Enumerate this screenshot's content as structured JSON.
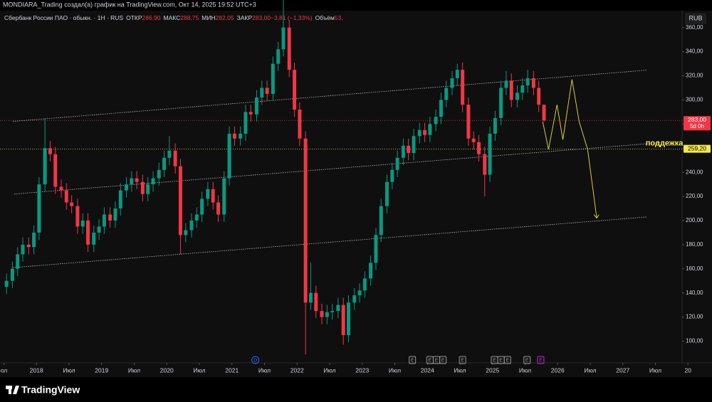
{
  "header": {
    "text": "MONDIARA_Trading создал(а) график на TradingView.com, Окт 14, 2025 19:52 UTC+3"
  },
  "legend": {
    "symbol": "Сбербанк России ПАО · обыкн. · 1Н · RUS",
    "items": [
      {
        "label": "ОТКР",
        "text": "286,90"
      },
      {
        "label": "МАКС",
        "text": "288,75"
      },
      {
        "label": "МИН",
        "text": "282,05"
      },
      {
        "label": "ЗАКР",
        "text": "283,00"
      },
      {
        "label": "",
        "text": "−3,81 (−1,33%)"
      },
      {
        "label": "Объём",
        "text": "53,"
      }
    ]
  },
  "currency": "RUB",
  "footer": {
    "brand": "TradingView"
  },
  "chart_data": {
    "type": "candlestick",
    "up_color": "#089981",
    "down_color": "#f23645",
    "xlim": [
      2017.44,
      2027.91
    ],
    "ylim": [
      82,
      374
    ],
    "xticks": [
      {
        "value": 2017.5,
        "label": "ол"
      },
      2018,
      {
        "value": 2018.5,
        "label": "Июл"
      },
      2019,
      {
        "value": 2019.5,
        "label": "Июл"
      },
      2020,
      {
        "value": 2020.5,
        "label": "Июл"
      },
      2021,
      {
        "value": 2021.5,
        "label": "Июл"
      },
      2022,
      {
        "value": 2022.5,
        "label": "Июл"
      },
      2023,
      {
        "value": 2023.5,
        "label": "Июл"
      },
      2024,
      {
        "value": 2024.5,
        "label": "Июл"
      },
      2025,
      {
        "value": 2025.5,
        "label": "Июл"
      },
      2026,
      {
        "value": 2026.5,
        "label": "Июл"
      },
      2027,
      {
        "value": 2027.5,
        "label": "Июл"
      },
      {
        "value": 2028,
        "label": "20"
      }
    ],
    "yticks": [
      {
        "value": 100,
        "label": "100,00"
      },
      {
        "value": 120,
        "label": "120,00"
      },
      {
        "value": 140,
        "label": "140,00"
      },
      {
        "value": 160,
        "label": "160,00"
      },
      {
        "value": 180,
        "label": "180,00"
      },
      {
        "value": 200,
        "label": "200,00"
      },
      {
        "value": 220,
        "label": "220,00"
      },
      {
        "value": 240,
        "label": "240,00"
      },
      {
        "value": 260,
        "label": "260,00"
      },
      {
        "value": 280,
        "label": "280,00"
      },
      {
        "value": 300,
        "label": "300,00"
      },
      {
        "value": 320,
        "label": "320,00"
      },
      {
        "value": 340,
        "label": "340,00"
      },
      {
        "value": 360,
        "label": "360,00"
      }
    ],
    "candles": {
      "x": [
        2017.54,
        2017.63,
        2017.71,
        2017.79,
        2017.88,
        2017.96,
        2018.04,
        2018.13,
        2018.21,
        2018.29,
        2018.38,
        2018.46,
        2018.54,
        2018.63,
        2018.71,
        2018.79,
        2018.88,
        2018.96,
        2019.04,
        2019.13,
        2019.21,
        2019.29,
        2019.38,
        2019.46,
        2019.54,
        2019.63,
        2019.71,
        2019.79,
        2019.88,
        2019.96,
        2020.04,
        2020.13,
        2020.21,
        2020.29,
        2020.38,
        2020.46,
        2020.54,
        2020.63,
        2020.71,
        2020.79,
        2020.88,
        2020.96,
        2021.04,
        2021.13,
        2021.21,
        2021.29,
        2021.38,
        2021.46,
        2021.54,
        2021.63,
        2021.71,
        2021.79,
        2021.88,
        2021.96,
        2022.04,
        2022.13,
        2022.21,
        2022.29,
        2022.38,
        2022.46,
        2022.54,
        2022.63,
        2022.71,
        2022.79,
        2022.88,
        2022.96,
        2023.04,
        2023.13,
        2023.21,
        2023.29,
        2023.38,
        2023.46,
        2023.54,
        2023.63,
        2023.71,
        2023.79,
        2023.88,
        2023.96,
        2024.04,
        2024.13,
        2024.21,
        2024.29,
        2024.38,
        2024.46,
        2024.54,
        2024.63,
        2024.71,
        2024.79,
        2024.88,
        2024.96,
        2025.04,
        2025.13,
        2025.21,
        2025.29,
        2025.38,
        2025.46,
        2025.54,
        2025.63,
        2025.71,
        2025.79
      ],
      "open": [
        145,
        150,
        160,
        172,
        180,
        178,
        190,
        230,
        260,
        255,
        228,
        225,
        215,
        212,
        195,
        200,
        180,
        190,
        195,
        205,
        200,
        210,
        225,
        230,
        235,
        232,
        222,
        230,
        235,
        242,
        252,
        258,
        245,
        188,
        192,
        200,
        205,
        218,
        226,
        215,
        205,
        235,
        272,
        268,
        272,
        290,
        288,
        302,
        310,
        305,
        330,
        342,
        360,
        325,
        292,
        268,
        132,
        140,
        125,
        120,
        124,
        125,
        130,
        105,
        132,
        138,
        142,
        152,
        165,
        188,
        212,
        232,
        242,
        252,
        262,
        256,
        270,
        275,
        271,
        280,
        286,
        300,
        310,
        318,
        325,
        296,
        268,
        265,
        255,
        238,
        272,
        285,
        310,
        316,
        300,
        306,
        312,
        318,
        310,
        296
      ],
      "high": [
        156,
        166,
        178,
        186,
        186,
        196,
        236,
        285,
        266,
        261,
        234,
        231,
        221,
        218,
        206,
        206,
        196,
        201,
        211,
        211,
        216,
        231,
        236,
        241,
        241,
        238,
        236,
        241,
        248,
        258,
        270,
        264,
        251,
        198,
        206,
        211,
        224,
        232,
        232,
        221,
        241,
        278,
        278,
        278,
        296,
        296,
        308,
        316,
        316,
        336,
        348,
        388,
        366,
        331,
        298,
        274,
        165,
        146,
        131,
        130,
        131,
        136,
        136,
        138,
        144,
        148,
        158,
        171,
        194,
        218,
        238,
        248,
        258,
        268,
        268,
        276,
        281,
        281,
        286,
        292,
        306,
        316,
        324,
        330,
        331,
        302,
        274,
        271,
        261,
        278,
        291,
        316,
        324,
        322,
        312,
        318,
        325,
        324,
        316,
        290
      ],
      "low": [
        139,
        144,
        154,
        166,
        172,
        172,
        184,
        224,
        249,
        222,
        219,
        209,
        206,
        189,
        189,
        174,
        174,
        184,
        189,
        194,
        194,
        204,
        219,
        224,
        226,
        216,
        216,
        224,
        229,
        236,
        246,
        239,
        172,
        182,
        186,
        194,
        199,
        212,
        209,
        199,
        199,
        229,
        262,
        262,
        266,
        282,
        282,
        296,
        299,
        299,
        324,
        336,
        319,
        286,
        262,
        89,
        126,
        119,
        114,
        114,
        118,
        119,
        97,
        99,
        126,
        132,
        136,
        146,
        159,
        182,
        206,
        226,
        236,
        246,
        250,
        250,
        264,
        265,
        265,
        274,
        280,
        294,
        304,
        312,
        290,
        262,
        259,
        249,
        220,
        232,
        266,
        279,
        304,
        294,
        294,
        300,
        306,
        304,
        290,
        282
      ],
      "close": [
        150,
        160,
        172,
        180,
        178,
        190,
        230,
        260,
        255,
        228,
        225,
        215,
        212,
        195,
        200,
        180,
        190,
        195,
        205,
        200,
        210,
        225,
        230,
        235,
        232,
        222,
        230,
        235,
        242,
        252,
        258,
        245,
        188,
        192,
        200,
        205,
        218,
        226,
        215,
        205,
        235,
        272,
        268,
        272,
        290,
        288,
        302,
        310,
        305,
        330,
        342,
        360,
        325,
        292,
        268,
        132,
        140,
        125,
        120,
        124,
        125,
        130,
        105,
        132,
        138,
        142,
        152,
        165,
        188,
        212,
        232,
        242,
        252,
        262,
        256,
        270,
        275,
        271,
        280,
        286,
        300,
        310,
        318,
        325,
        296,
        268,
        265,
        255,
        238,
        272,
        285,
        310,
        316,
        300,
        306,
        312,
        318,
        310,
        296,
        283
      ]
    },
    "trendlines": [
      {
        "x": [
          2017.64,
          2027.37
        ],
        "y": [
          282.2,
          324.7
        ]
      },
      {
        "x": [
          2017.66,
          2027.57
        ],
        "y": [
          222,
          264.5
        ]
      },
      {
        "x": [
          2017.64,
          2027.37
        ],
        "y": [
          161,
          203
        ]
      }
    ],
    "annotation": {
      "text": "поддежка",
      "x": 2027.35,
      "y": 264,
      "color": "#f5e94a"
    },
    "forecast": {
      "color": "#d8cc3a",
      "x": [
        2025.77,
        2025.86,
        2025.99,
        2026.08,
        2026.22,
        2026.33,
        2026.46,
        2026.6
      ],
      "y": [
        282,
        259,
        296,
        267,
        317,
        282,
        259,
        202
      ]
    },
    "price_lines": [
      {
        "value": 283,
        "label": "283,00",
        "sub": "5d 0h",
        "color": "#f23645"
      },
      {
        "value": 259.2,
        "label": "259,20",
        "color": "#f5e94a"
      }
    ],
    "events": [
      {
        "x": 2021.36,
        "label": "D",
        "color": "#2962ff"
      },
      {
        "x": 2023.77,
        "label": "E",
        "color": "#9a9a9a"
      },
      {
        "x": 2024.04,
        "label": "E",
        "color": "#9a9a9a"
      },
      {
        "x": 2024.14,
        "label": "E",
        "color": "#9a9a9a"
      },
      {
        "x": 2024.24,
        "label": "E",
        "color": "#9a9a9a"
      },
      {
        "x": 2024.54,
        "label": "E",
        "color": "#9a9a9a"
      },
      {
        "x": 2025.03,
        "label": "E",
        "color": "#9a9a9a"
      },
      {
        "x": 2025.13,
        "label": "E",
        "color": "#9a9a9a"
      },
      {
        "x": 2025.23,
        "label": "E",
        "color": "#9a9a9a"
      },
      {
        "x": 2025.53,
        "label": "E",
        "color": "#9a9a9a"
      },
      {
        "x": 2025.74,
        "label": "E",
        "color": "#c026d3"
      }
    ]
  }
}
